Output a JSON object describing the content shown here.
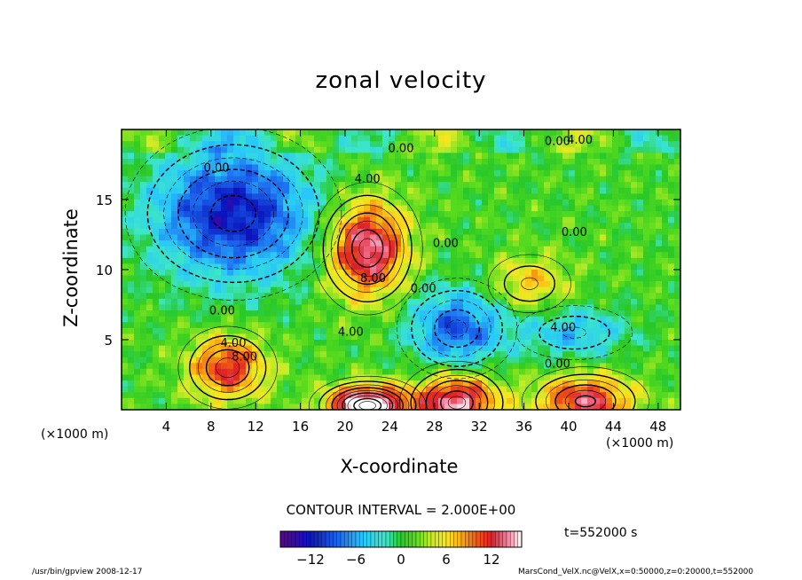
{
  "chart_data": {
    "type": "heatmap",
    "title": "zonal velocity",
    "xlabel": "X-coordinate",
    "ylabel": "Z-coordinate",
    "x_unit_label_left": "(×1000 m)",
    "x_unit_label_right": "(×1000 m)",
    "xlim": [
      0,
      50
    ],
    "ylim": [
      0,
      20
    ],
    "x_ticks": [
      4,
      8,
      12,
      16,
      20,
      24,
      28,
      32,
      36,
      40,
      44,
      48
    ],
    "y_ticks": [
      5,
      10,
      15
    ],
    "contour_interval_text": "CONTOUR INTERVAL = 2.000E+00",
    "time_text": "t=552000 s",
    "colorbar": {
      "min": -16,
      "max": 16,
      "ticks": [
        -12,
        -6,
        0,
        6,
        12
      ]
    },
    "contour_labels": [
      {
        "text": "0.00",
        "x": 39.0,
        "z": 18.9
      },
      {
        "text": "4.00",
        "x": 41.0,
        "z": 19.0
      },
      {
        "text": "0.00",
        "x": 25.0,
        "z": 18.4
      },
      {
        "text": "4.00",
        "x": 22.0,
        "z": 16.2
      },
      {
        "text": "0.00",
        "x": 40.5,
        "z": 12.4
      },
      {
        "text": "4.00",
        "x": 39.5,
        "z": 5.6
      },
      {
        "text": "0.00",
        "x": 39.0,
        "z": 3.0
      },
      {
        "text": "0.00",
        "x": 29.0,
        "z": 11.6
      },
      {
        "text": "8.00",
        "x": 22.5,
        "z": 9.1
      },
      {
        "text": "0.00",
        "x": 27.0,
        "z": 8.4
      },
      {
        "text": "4.00",
        "x": 20.5,
        "z": 5.3
      },
      {
        "text": "0.00",
        "x": 9.0,
        "z": 6.8
      },
      {
        "text": "4.00",
        "x": 10.0,
        "z": 4.5
      },
      {
        "text": "8.00",
        "x": 11.0,
        "z": 3.5
      },
      {
        "text": "0.00",
        "x": 8.5,
        "z": 17.0
      }
    ],
    "features": [
      {
        "kind": "jet max",
        "x": 22,
        "z": 11.5,
        "value": 14,
        "sx": 2.5,
        "sz": 2.4
      },
      {
        "kind": "westward min",
        "x": 10,
        "z": 14,
        "value": -13,
        "sx": 5,
        "sz": 3.2
      },
      {
        "kind": "westward min",
        "x": 30,
        "z": 5.8,
        "value": -10,
        "sx": 3,
        "sz": 2
      },
      {
        "kind": "westward min",
        "x": 40.5,
        "z": 5.5,
        "value": -6,
        "sx": 3.5,
        "sz": 1.3
      },
      {
        "kind": "eastward max",
        "x": 9.5,
        "z": 3.0,
        "value": 11,
        "sx": 2.4,
        "sz": 1.6
      },
      {
        "kind": "eastward max",
        "x": 30,
        "z": 0.5,
        "value": 14,
        "sx": 2.6,
        "sz": 1.5
      },
      {
        "kind": "eastward max",
        "x": 41.5,
        "z": 0.6,
        "value": 12,
        "sx": 3,
        "sz": 1.3
      },
      {
        "kind": "eastward max",
        "x": 22,
        "z": 0.3,
        "value": 18,
        "sx": 2.5,
        "sz": 1.0
      },
      {
        "kind": "eastward max",
        "x": 36.5,
        "z": 9.0,
        "value": 6,
        "sx": 2.5,
        "sz": 1.4
      }
    ]
  },
  "footer": {
    "left": "/usr/bin/gpview   2008-12-17",
    "right": "MarsCond_VelX.nc@VelX,x=0:50000,z=0:20000,t=552000"
  }
}
